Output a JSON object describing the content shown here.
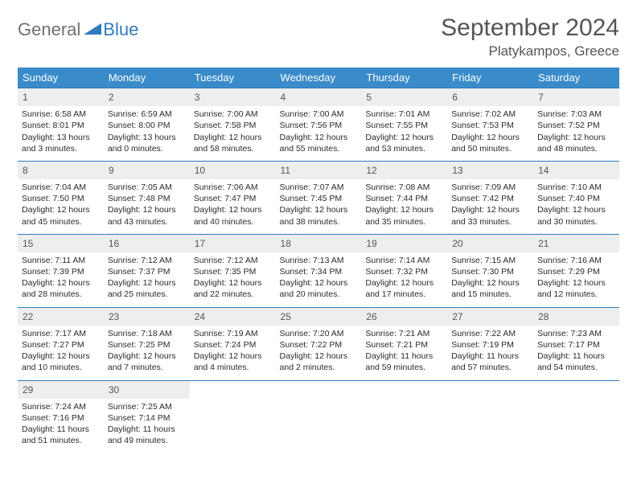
{
  "logo": {
    "part1": "General",
    "part2": "Blue"
  },
  "title": "September 2024",
  "location": "Platykampos, Greece",
  "colors": {
    "header_bg": "#3a8bc9",
    "border": "#2f7bbf",
    "daynum_bg": "#eeeeee",
    "text": "#2b2b2b"
  },
  "weekdays": [
    "Sunday",
    "Monday",
    "Tuesday",
    "Wednesday",
    "Thursday",
    "Friday",
    "Saturday"
  ],
  "weeks": [
    [
      {
        "n": "1",
        "sr": "Sunrise: 6:58 AM",
        "ss": "Sunset: 8:01 PM",
        "d1": "Daylight: 13 hours",
        "d2": "and 3 minutes."
      },
      {
        "n": "2",
        "sr": "Sunrise: 6:59 AM",
        "ss": "Sunset: 8:00 PM",
        "d1": "Daylight: 13 hours",
        "d2": "and 0 minutes."
      },
      {
        "n": "3",
        "sr": "Sunrise: 7:00 AM",
        "ss": "Sunset: 7:58 PM",
        "d1": "Daylight: 12 hours",
        "d2": "and 58 minutes."
      },
      {
        "n": "4",
        "sr": "Sunrise: 7:00 AM",
        "ss": "Sunset: 7:56 PM",
        "d1": "Daylight: 12 hours",
        "d2": "and 55 minutes."
      },
      {
        "n": "5",
        "sr": "Sunrise: 7:01 AM",
        "ss": "Sunset: 7:55 PM",
        "d1": "Daylight: 12 hours",
        "d2": "and 53 minutes."
      },
      {
        "n": "6",
        "sr": "Sunrise: 7:02 AM",
        "ss": "Sunset: 7:53 PM",
        "d1": "Daylight: 12 hours",
        "d2": "and 50 minutes."
      },
      {
        "n": "7",
        "sr": "Sunrise: 7:03 AM",
        "ss": "Sunset: 7:52 PM",
        "d1": "Daylight: 12 hours",
        "d2": "and 48 minutes."
      }
    ],
    [
      {
        "n": "8",
        "sr": "Sunrise: 7:04 AM",
        "ss": "Sunset: 7:50 PM",
        "d1": "Daylight: 12 hours",
        "d2": "and 45 minutes."
      },
      {
        "n": "9",
        "sr": "Sunrise: 7:05 AM",
        "ss": "Sunset: 7:48 PM",
        "d1": "Daylight: 12 hours",
        "d2": "and 43 minutes."
      },
      {
        "n": "10",
        "sr": "Sunrise: 7:06 AM",
        "ss": "Sunset: 7:47 PM",
        "d1": "Daylight: 12 hours",
        "d2": "and 40 minutes."
      },
      {
        "n": "11",
        "sr": "Sunrise: 7:07 AM",
        "ss": "Sunset: 7:45 PM",
        "d1": "Daylight: 12 hours",
        "d2": "and 38 minutes."
      },
      {
        "n": "12",
        "sr": "Sunrise: 7:08 AM",
        "ss": "Sunset: 7:44 PM",
        "d1": "Daylight: 12 hours",
        "d2": "and 35 minutes."
      },
      {
        "n": "13",
        "sr": "Sunrise: 7:09 AM",
        "ss": "Sunset: 7:42 PM",
        "d1": "Daylight: 12 hours",
        "d2": "and 33 minutes."
      },
      {
        "n": "14",
        "sr": "Sunrise: 7:10 AM",
        "ss": "Sunset: 7:40 PM",
        "d1": "Daylight: 12 hours",
        "d2": "and 30 minutes."
      }
    ],
    [
      {
        "n": "15",
        "sr": "Sunrise: 7:11 AM",
        "ss": "Sunset: 7:39 PM",
        "d1": "Daylight: 12 hours",
        "d2": "and 28 minutes."
      },
      {
        "n": "16",
        "sr": "Sunrise: 7:12 AM",
        "ss": "Sunset: 7:37 PM",
        "d1": "Daylight: 12 hours",
        "d2": "and 25 minutes."
      },
      {
        "n": "17",
        "sr": "Sunrise: 7:12 AM",
        "ss": "Sunset: 7:35 PM",
        "d1": "Daylight: 12 hours",
        "d2": "and 22 minutes."
      },
      {
        "n": "18",
        "sr": "Sunrise: 7:13 AM",
        "ss": "Sunset: 7:34 PM",
        "d1": "Daylight: 12 hours",
        "d2": "and 20 minutes."
      },
      {
        "n": "19",
        "sr": "Sunrise: 7:14 AM",
        "ss": "Sunset: 7:32 PM",
        "d1": "Daylight: 12 hours",
        "d2": "and 17 minutes."
      },
      {
        "n": "20",
        "sr": "Sunrise: 7:15 AM",
        "ss": "Sunset: 7:30 PM",
        "d1": "Daylight: 12 hours",
        "d2": "and 15 minutes."
      },
      {
        "n": "21",
        "sr": "Sunrise: 7:16 AM",
        "ss": "Sunset: 7:29 PM",
        "d1": "Daylight: 12 hours",
        "d2": "and 12 minutes."
      }
    ],
    [
      {
        "n": "22",
        "sr": "Sunrise: 7:17 AM",
        "ss": "Sunset: 7:27 PM",
        "d1": "Daylight: 12 hours",
        "d2": "and 10 minutes."
      },
      {
        "n": "23",
        "sr": "Sunrise: 7:18 AM",
        "ss": "Sunset: 7:25 PM",
        "d1": "Daylight: 12 hours",
        "d2": "and 7 minutes."
      },
      {
        "n": "24",
        "sr": "Sunrise: 7:19 AM",
        "ss": "Sunset: 7:24 PM",
        "d1": "Daylight: 12 hours",
        "d2": "and 4 minutes."
      },
      {
        "n": "25",
        "sr": "Sunrise: 7:20 AM",
        "ss": "Sunset: 7:22 PM",
        "d1": "Daylight: 12 hours",
        "d2": "and 2 minutes."
      },
      {
        "n": "26",
        "sr": "Sunrise: 7:21 AM",
        "ss": "Sunset: 7:21 PM",
        "d1": "Daylight: 11 hours",
        "d2": "and 59 minutes."
      },
      {
        "n": "27",
        "sr": "Sunrise: 7:22 AM",
        "ss": "Sunset: 7:19 PM",
        "d1": "Daylight: 11 hours",
        "d2": "and 57 minutes."
      },
      {
        "n": "28",
        "sr": "Sunrise: 7:23 AM",
        "ss": "Sunset: 7:17 PM",
        "d1": "Daylight: 11 hours",
        "d2": "and 54 minutes."
      }
    ],
    [
      {
        "n": "29",
        "sr": "Sunrise: 7:24 AM",
        "ss": "Sunset: 7:16 PM",
        "d1": "Daylight: 11 hours",
        "d2": "and 51 minutes."
      },
      {
        "n": "30",
        "sr": "Sunrise: 7:25 AM",
        "ss": "Sunset: 7:14 PM",
        "d1": "Daylight: 11 hours",
        "d2": "and 49 minutes."
      },
      null,
      null,
      null,
      null,
      null
    ]
  ]
}
